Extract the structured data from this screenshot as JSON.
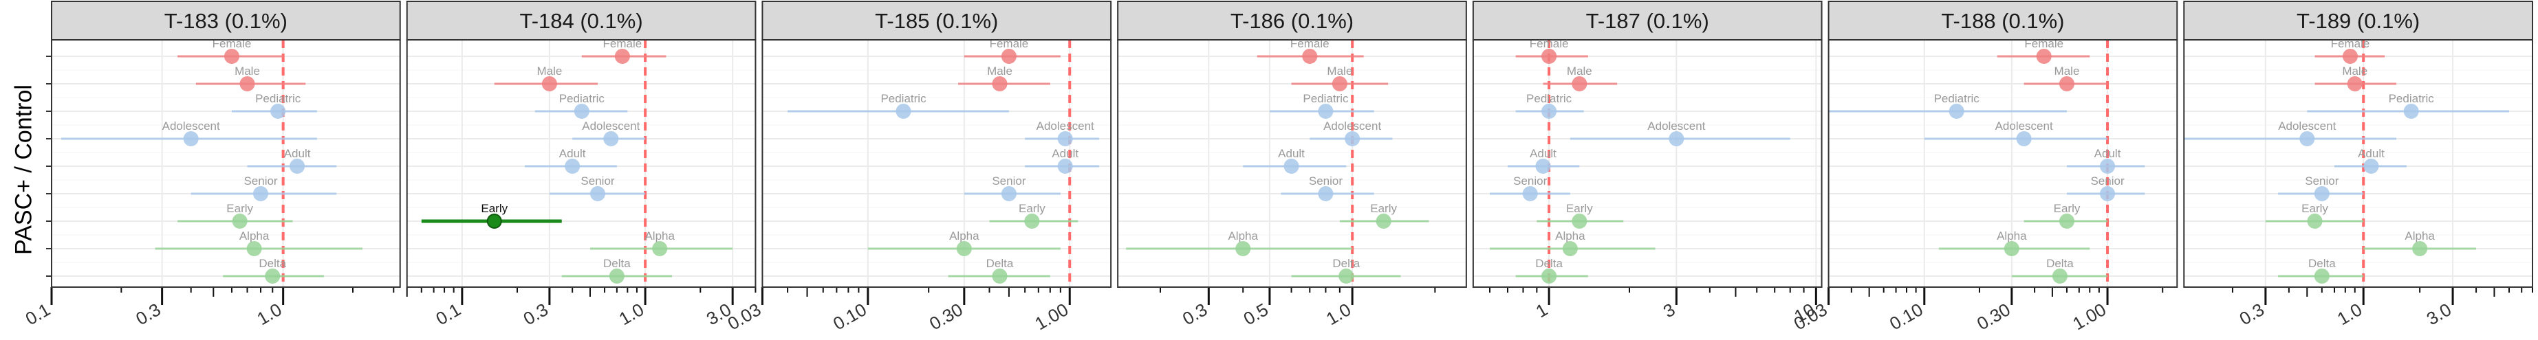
{
  "ylabel": "PASC+ / Control",
  "colors": {
    "sex": "#f08080",
    "age": "#a8c8ea",
    "variant": "#98d498",
    "highlight": "#1a8a1a",
    "refline": "#ff6b6b",
    "strip_fill": "#d9d9d9",
    "grid": "#ebebeb"
  },
  "row_labels": [
    "Female",
    "Male",
    "Pediatric",
    "Adolescent",
    "Adult",
    "Senior",
    "Early",
    "Alpha",
    "Delta"
  ],
  "row_groups": [
    "sex",
    "sex",
    "age",
    "age",
    "age",
    "age",
    "variant",
    "variant",
    "variant"
  ],
  "chart_data": [
    {
      "type": "scatter",
      "title": "T-183 (0.1%)",
      "xscale": "log",
      "xlim": [
        0.1,
        3.2
      ],
      "xticks": [
        0.1,
        0.3,
        1.0
      ],
      "xtick_labels": [
        "0.1",
        "0.3",
        "1.0"
      ],
      "points": [
        {
          "label": "Female",
          "est": 0.6,
          "lo": 0.35,
          "hi": 1.0,
          "highlight": false
        },
        {
          "label": "Male",
          "est": 0.7,
          "lo": 0.42,
          "hi": 1.25,
          "highlight": false
        },
        {
          "label": "Pediatric",
          "est": 0.95,
          "lo": 0.6,
          "hi": 1.4,
          "highlight": false
        },
        {
          "label": "Adolescent",
          "est": 0.4,
          "lo": 0.11,
          "hi": 1.4,
          "highlight": false
        },
        {
          "label": "Adult",
          "est": 1.15,
          "lo": 0.7,
          "hi": 1.7,
          "highlight": false
        },
        {
          "label": "Senior",
          "est": 0.8,
          "lo": 0.4,
          "hi": 1.7,
          "highlight": false
        },
        {
          "label": "Early",
          "est": 0.65,
          "lo": 0.35,
          "hi": 1.1,
          "highlight": false
        },
        {
          "label": "Alpha",
          "est": 0.75,
          "lo": 0.28,
          "hi": 2.2,
          "highlight": false
        },
        {
          "label": "Delta",
          "est": 0.9,
          "lo": 0.55,
          "hi": 1.5,
          "highlight": false
        }
      ]
    },
    {
      "type": "scatter",
      "title": "T-184 (0.1%)",
      "xscale": "log",
      "xlim": [
        0.05,
        4.0
      ],
      "xticks": [
        0.1,
        0.3,
        1.0,
        3.0
      ],
      "xtick_labels": [
        "0.1",
        "0.3",
        "1.0",
        "3.0"
      ],
      "points": [
        {
          "label": "Female",
          "est": 0.75,
          "lo": 0.45,
          "hi": 1.3,
          "highlight": false
        },
        {
          "label": "Male",
          "est": 0.3,
          "lo": 0.15,
          "hi": 0.55,
          "highlight": false
        },
        {
          "label": "Pediatric",
          "est": 0.45,
          "lo": 0.25,
          "hi": 0.8,
          "highlight": false
        },
        {
          "label": "Adolescent",
          "est": 0.65,
          "lo": 0.4,
          "hi": 1.0,
          "highlight": false
        },
        {
          "label": "Adult",
          "est": 0.4,
          "lo": 0.22,
          "hi": 0.7,
          "highlight": false
        },
        {
          "label": "Senior",
          "est": 0.55,
          "lo": 0.3,
          "hi": 1.0,
          "highlight": false
        },
        {
          "label": "Early",
          "est": 0.15,
          "lo": 0.06,
          "hi": 0.35,
          "highlight": true
        },
        {
          "label": "Alpha",
          "est": 1.2,
          "lo": 0.5,
          "hi": 3.0,
          "highlight": false
        },
        {
          "label": "Delta",
          "est": 0.7,
          "lo": 0.35,
          "hi": 1.4,
          "highlight": false
        }
      ]
    },
    {
      "type": "scatter",
      "title": "T-185 (0.1%)",
      "xscale": "log",
      "xlim": [
        0.03,
        1.6
      ],
      "xticks": [
        0.03,
        0.1,
        0.3,
        1.0
      ],
      "xtick_labels": [
        "0.03",
        "0.10",
        "0.30",
        "1.00"
      ],
      "points": [
        {
          "label": "Female",
          "est": 0.5,
          "lo": 0.3,
          "hi": 0.9,
          "highlight": false
        },
        {
          "label": "Male",
          "est": 0.45,
          "lo": 0.28,
          "hi": 0.8,
          "highlight": false
        },
        {
          "label": "Pediatric",
          "est": 0.15,
          "lo": 0.04,
          "hi": 0.5,
          "highlight": false
        },
        {
          "label": "Adolescent",
          "est": 0.95,
          "lo": 0.6,
          "hi": 1.4,
          "highlight": false
        },
        {
          "label": "Adult",
          "est": 0.95,
          "lo": 0.6,
          "hi": 1.4,
          "highlight": false
        },
        {
          "label": "Senior",
          "est": 0.5,
          "lo": 0.3,
          "hi": 0.9,
          "highlight": false
        },
        {
          "label": "Early",
          "est": 0.65,
          "lo": 0.4,
          "hi": 1.1,
          "highlight": false
        },
        {
          "label": "Alpha",
          "est": 0.3,
          "lo": 0.1,
          "hi": 0.9,
          "highlight": false
        },
        {
          "label": "Delta",
          "est": 0.45,
          "lo": 0.25,
          "hi": 0.8,
          "highlight": false
        }
      ]
    },
    {
      "type": "scatter",
      "title": "T-186 (0.1%)",
      "xscale": "log",
      "xlim": [
        0.14,
        2.6
      ],
      "xticks": [
        0.3,
        0.5,
        1.0
      ],
      "xtick_labels": [
        "0.3",
        "0.5",
        "1.0"
      ],
      "points": [
        {
          "label": "Female",
          "est": 0.7,
          "lo": 0.45,
          "hi": 1.1,
          "highlight": false
        },
        {
          "label": "Male",
          "est": 0.9,
          "lo": 0.6,
          "hi": 1.35,
          "highlight": false
        },
        {
          "label": "Pediatric",
          "est": 0.8,
          "lo": 0.5,
          "hi": 1.2,
          "highlight": false
        },
        {
          "label": "Adolescent",
          "est": 1.0,
          "lo": 0.7,
          "hi": 1.4,
          "highlight": false
        },
        {
          "label": "Adult",
          "est": 0.6,
          "lo": 0.4,
          "hi": 0.95,
          "highlight": false
        },
        {
          "label": "Senior",
          "est": 0.8,
          "lo": 0.55,
          "hi": 1.2,
          "highlight": false
        },
        {
          "label": "Early",
          "est": 1.3,
          "lo": 0.9,
          "hi": 1.9,
          "highlight": false
        },
        {
          "label": "Alpha",
          "est": 0.4,
          "lo": 0.15,
          "hi": 1.0,
          "highlight": false
        },
        {
          "label": "Delta",
          "est": 0.95,
          "lo": 0.6,
          "hi": 1.5,
          "highlight": false
        }
      ]
    },
    {
      "type": "scatter",
      "title": "T-187 (0.1%)",
      "xscale": "log",
      "xlim": [
        0.52,
        10.5
      ],
      "xticks": [
        1,
        3,
        10
      ],
      "xtick_labels": [
        "1",
        "3",
        "10"
      ],
      "points": [
        {
          "label": "Female",
          "est": 1.0,
          "lo": 0.75,
          "hi": 1.4,
          "highlight": false
        },
        {
          "label": "Male",
          "est": 1.3,
          "lo": 0.95,
          "hi": 1.8,
          "highlight": false
        },
        {
          "label": "Pediatric",
          "est": 1.0,
          "lo": 0.75,
          "hi": 1.35,
          "highlight": false
        },
        {
          "label": "Adolescent",
          "est": 3.0,
          "lo": 1.2,
          "hi": 8.0,
          "highlight": false
        },
        {
          "label": "Adult",
          "est": 0.95,
          "lo": 0.7,
          "hi": 1.3,
          "highlight": false
        },
        {
          "label": "Senior",
          "est": 0.85,
          "lo": 0.6,
          "hi": 1.2,
          "highlight": false
        },
        {
          "label": "Early",
          "est": 1.3,
          "lo": 0.9,
          "hi": 1.9,
          "highlight": false
        },
        {
          "label": "Alpha",
          "est": 1.2,
          "lo": 0.6,
          "hi": 2.5,
          "highlight": false
        },
        {
          "label": "Delta",
          "est": 1.0,
          "lo": 0.75,
          "hi": 1.4,
          "highlight": false
        }
      ]
    },
    {
      "type": "scatter",
      "title": "T-188 (0.1%)",
      "xscale": "log",
      "xlim": [
        0.03,
        2.4
      ],
      "xticks": [
        0.03,
        0.1,
        0.3,
        1.0
      ],
      "xtick_labels": [
        "0.03",
        "0.10",
        "0.30",
        "1.00"
      ],
      "points": [
        {
          "label": "Female",
          "est": 0.45,
          "lo": 0.25,
          "hi": 0.8,
          "highlight": false
        },
        {
          "label": "Male",
          "est": 0.6,
          "lo": 0.35,
          "hi": 1.0,
          "highlight": false
        },
        {
          "label": "Pediatric",
          "est": 0.15,
          "lo": 0.03,
          "hi": 0.6,
          "highlight": false
        },
        {
          "label": "Adolescent",
          "est": 0.35,
          "lo": 0.1,
          "hi": 1.0,
          "highlight": false
        },
        {
          "label": "Adult",
          "est": 1.0,
          "lo": 0.6,
          "hi": 1.6,
          "highlight": false
        },
        {
          "label": "Senior",
          "est": 1.0,
          "lo": 0.6,
          "hi": 1.6,
          "highlight": false
        },
        {
          "label": "Early",
          "est": 0.6,
          "lo": 0.35,
          "hi": 1.0,
          "highlight": false
        },
        {
          "label": "Alpha",
          "est": 0.3,
          "lo": 0.12,
          "hi": 0.8,
          "highlight": false
        },
        {
          "label": "Delta",
          "est": 0.55,
          "lo": 0.3,
          "hi": 1.0,
          "highlight": false
        }
      ]
    },
    {
      "type": "scatter",
      "title": "T-189 (0.1%)",
      "xscale": "log",
      "xlim": [
        0.11,
        8.0
      ],
      "xticks": [
        0.3,
        1.0,
        3.0
      ],
      "xtick_labels": [
        "0.3",
        "1.0",
        "3.0"
      ],
      "points": [
        {
          "label": "Female",
          "est": 0.85,
          "lo": 0.55,
          "hi": 1.3,
          "highlight": false
        },
        {
          "label": "Male",
          "est": 0.9,
          "lo": 0.55,
          "hi": 1.5,
          "highlight": false
        },
        {
          "label": "Pediatric",
          "est": 1.8,
          "lo": 0.5,
          "hi": 6.0,
          "highlight": false
        },
        {
          "label": "Adolescent",
          "est": 0.5,
          "lo": 0.11,
          "hi": 1.5,
          "highlight": false
        },
        {
          "label": "Adult",
          "est": 1.1,
          "lo": 0.7,
          "hi": 1.7,
          "highlight": false
        },
        {
          "label": "Senior",
          "est": 0.6,
          "lo": 0.35,
          "hi": 1.0,
          "highlight": false
        },
        {
          "label": "Early",
          "est": 0.55,
          "lo": 0.3,
          "hi": 1.0,
          "highlight": false
        },
        {
          "label": "Alpha",
          "est": 2.0,
          "lo": 1.0,
          "hi": 4.0,
          "highlight": false
        },
        {
          "label": "Delta",
          "est": 0.6,
          "lo": 0.35,
          "hi": 1.0,
          "highlight": false
        }
      ]
    }
  ]
}
